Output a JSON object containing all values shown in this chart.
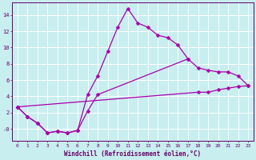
{
  "background_color": "#c8eef0",
  "line_color": "#aa00aa",
  "grid_color": "#ffffff",
  "xlabel": "Windchill (Refroidissement éolien,°C)",
  "xlabel_color": "#660066",
  "tick_color": "#660066",
  "xlim": [
    -0.5,
    23.5
  ],
  "ylim": [
    -1.5,
    15.5
  ],
  "yticks": [
    0,
    2,
    4,
    6,
    8,
    10,
    12,
    14
  ],
  "ytick_labels": [
    "-0",
    "2",
    "4",
    "6",
    "8",
    "10",
    "12",
    "14"
  ],
  "xticks": [
    0,
    1,
    2,
    3,
    4,
    5,
    6,
    7,
    8,
    9,
    10,
    11,
    12,
    13,
    14,
    15,
    16,
    17,
    18,
    19,
    20,
    21,
    22,
    23
  ],
  "line1_x": [
    0,
    1,
    2,
    3,
    4,
    5,
    6,
    7,
    8,
    9,
    10,
    11,
    12,
    13,
    14,
    15,
    16,
    17
  ],
  "line1_y": [
    2.7,
    1.5,
    0.7,
    -0.5,
    -0.3,
    -0.5,
    -0.2,
    4.2,
    6.5,
    9.5,
    12.5,
    14.8,
    13.0,
    12.5,
    11.5,
    11.2,
    10.3,
    8.6
  ],
  "line2_x": [
    0,
    1,
    2,
    3,
    4,
    5,
    6,
    7,
    8,
    17,
    18,
    19,
    20,
    21,
    22,
    23
  ],
  "line2_y": [
    2.7,
    1.5,
    0.7,
    -0.5,
    -0.3,
    -0.5,
    -0.2,
    2.2,
    4.2,
    8.6,
    7.5,
    7.2,
    7.0,
    7.0,
    6.5,
    5.3
  ],
  "line3_x": [
    0,
    18,
    19,
    20,
    21,
    22,
    23
  ],
  "line3_y": [
    2.7,
    4.5,
    4.5,
    4.8,
    5.0,
    5.2,
    5.3
  ],
  "marker": "D",
  "markersize": 2.5,
  "linewidth": 0.9
}
